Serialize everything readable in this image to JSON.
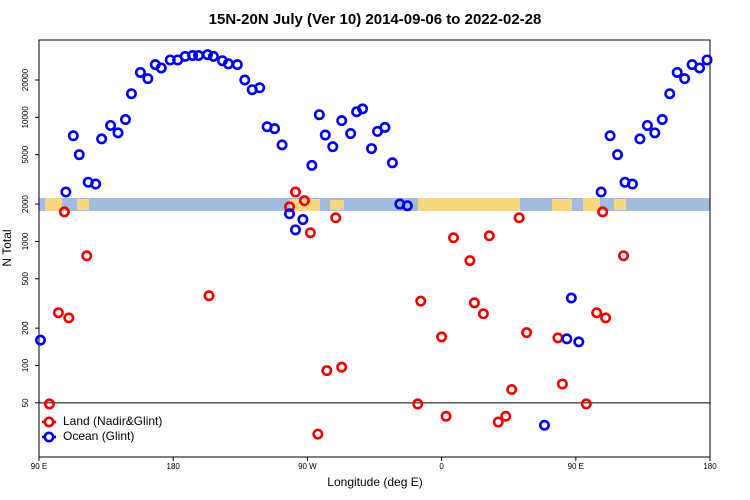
{
  "chart_data": {
    "type": "scatter",
    "title": "15N-20N July (Ver 10)   2014-09-06 to 2022-02-28",
    "xlabel": "Longitude (deg E)",
    "ylabel": "N Total",
    "log_y": true,
    "legend": "lower left",
    "hline": 50,
    "xlim": [
      90,
      540
    ],
    "xticks": [
      {
        "value": 90,
        "label": "90 E"
      },
      180,
      {
        "value": 270,
        "label": "90 W"
      },
      {
        "value": 360,
        "label": "0"
      },
      {
        "value": 450,
        "label": "90 E"
      },
      {
        "value": 540,
        "label": "180"
      }
    ],
    "ylim": [
      18.3,
      42000
    ],
    "yticks": [
      50,
      100,
      200,
      500,
      1000,
      2000,
      5000,
      10000,
      20000
    ],
    "series": [
      {
        "name": "Land (Nadir&Glint)",
        "color": "#ee0000",
        "x": [
          97,
          103,
          107,
          110,
          122,
          204,
          258,
          262,
          268,
          272,
          277,
          283,
          289,
          293,
          344,
          346,
          360,
          363,
          368,
          379,
          382,
          388,
          392,
          398,
          403,
          407,
          412,
          417,
          438,
          441,
          457,
          464,
          468,
          470,
          482
        ],
        "values": [
          49,
          266,
          1730,
          242,
          766,
          365,
          1900,
          2500,
          2130,
          1175,
          28,
          91,
          1550,
          97,
          49,
          330,
          170,
          39,
          1070,
          700,
          320,
          261,
          1110,
          35,
          39,
          64,
          1550,
          184,
          167,
          71,
          49,
          266,
          1730,
          242,
          766
        ]
      },
      {
        "name": "Ocean (Glint)",
        "color": "#0000ee",
        "x": [
          91,
          108,
          113,
          117,
          123,
          128,
          132,
          138,
          143,
          148,
          152,
          158,
          163,
          168,
          172,
          178,
          183,
          188,
          193,
          197,
          203,
          207,
          213,
          217,
          223,
          228,
          233,
          238,
          243,
          248,
          253,
          258,
          262,
          267,
          273,
          278,
          282,
          287,
          293,
          299,
          303,
          307,
          313,
          317,
          322,
          327,
          332,
          337,
          429,
          444,
          447,
          452,
          467,
          473,
          478,
          483,
          488,
          493,
          498,
          503,
          508,
          513,
          518,
          523,
          528,
          533,
          538
        ],
        "values": [
          160,
          2500,
          7100,
          5000,
          3000,
          2900,
          6700,
          8600,
          7500,
          9600,
          15500,
          23000,
          20500,
          26600,
          25000,
          29000,
          29000,
          31000,
          31500,
          31500,
          32000,
          31000,
          28600,
          27000,
          26600,
          20000,
          16700,
          17300,
          8400,
          8100,
          6000,
          1670,
          1240,
          1500,
          4100,
          10500,
          7200,
          5800,
          9400,
          7400,
          11100,
          11700,
          5600,
          7700,
          8300,
          4300,
          2000,
          1940,
          33,
          164,
          350,
          155,
          2500,
          7100,
          5000,
          3000,
          2900,
          6700,
          8600,
          7500,
          9600,
          15500,
          23000,
          20500,
          26600,
          25000,
          29000
        ]
      }
    ]
  }
}
